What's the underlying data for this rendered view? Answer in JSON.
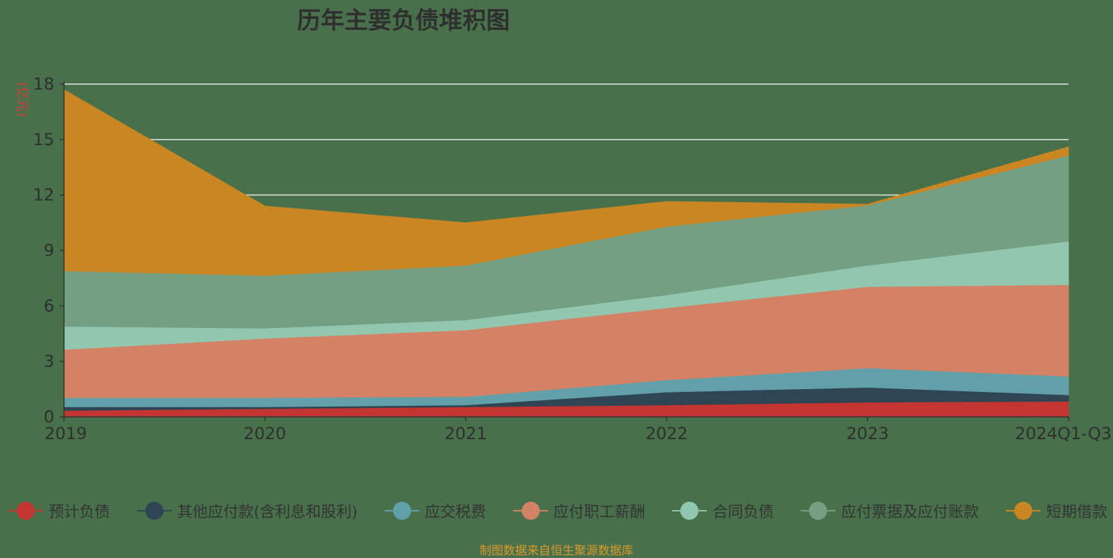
{
  "chart_data": {
    "type": "area",
    "title": "历年主要负债堆积图",
    "y_unit": "(亿元)",
    "stacked": true,
    "categories": [
      "2019",
      "2020",
      "2021",
      "2022",
      "2023",
      "2024Q1-Q3"
    ],
    "ylim": [
      0,
      18
    ],
    "yticks": [
      0,
      3,
      6,
      9,
      12,
      15,
      18
    ],
    "grid": true,
    "legend_position": "bottom",
    "series": [
      {
        "name": "预计负债",
        "color": "#c23531",
        "values": [
          0.35,
          0.45,
          0.55,
          0.65,
          0.8,
          0.85
        ]
      },
      {
        "name": "其他应付款(含利息和股利)",
        "color": "#2f4554",
        "values": [
          0.2,
          0.1,
          0.1,
          0.7,
          0.8,
          0.35
        ]
      },
      {
        "name": "应交税费",
        "color": "#61a0a8",
        "values": [
          0.5,
          0.5,
          0.45,
          0.65,
          1.05,
          1.0
        ]
      },
      {
        "name": "应付职工薪酬",
        "color": "#d48265",
        "values": [
          2.6,
          3.2,
          3.6,
          3.9,
          4.4,
          4.95
        ]
      },
      {
        "name": "合同负债",
        "color": "#91c7ae",
        "values": [
          1.25,
          0.55,
          0.55,
          0.7,
          1.15,
          2.35
        ]
      },
      {
        "name": "应付票据及应付账款",
        "color": "#749f83",
        "values": [
          3.0,
          2.85,
          2.95,
          3.7,
          3.25,
          4.65
        ]
      },
      {
        "name": "短期借款",
        "color": "#ca8622",
        "values": [
          9.8,
          3.75,
          2.3,
          1.35,
          0.05,
          0.45
        ]
      }
    ]
  },
  "source_note": "制图数据来自恒生聚源数据库"
}
